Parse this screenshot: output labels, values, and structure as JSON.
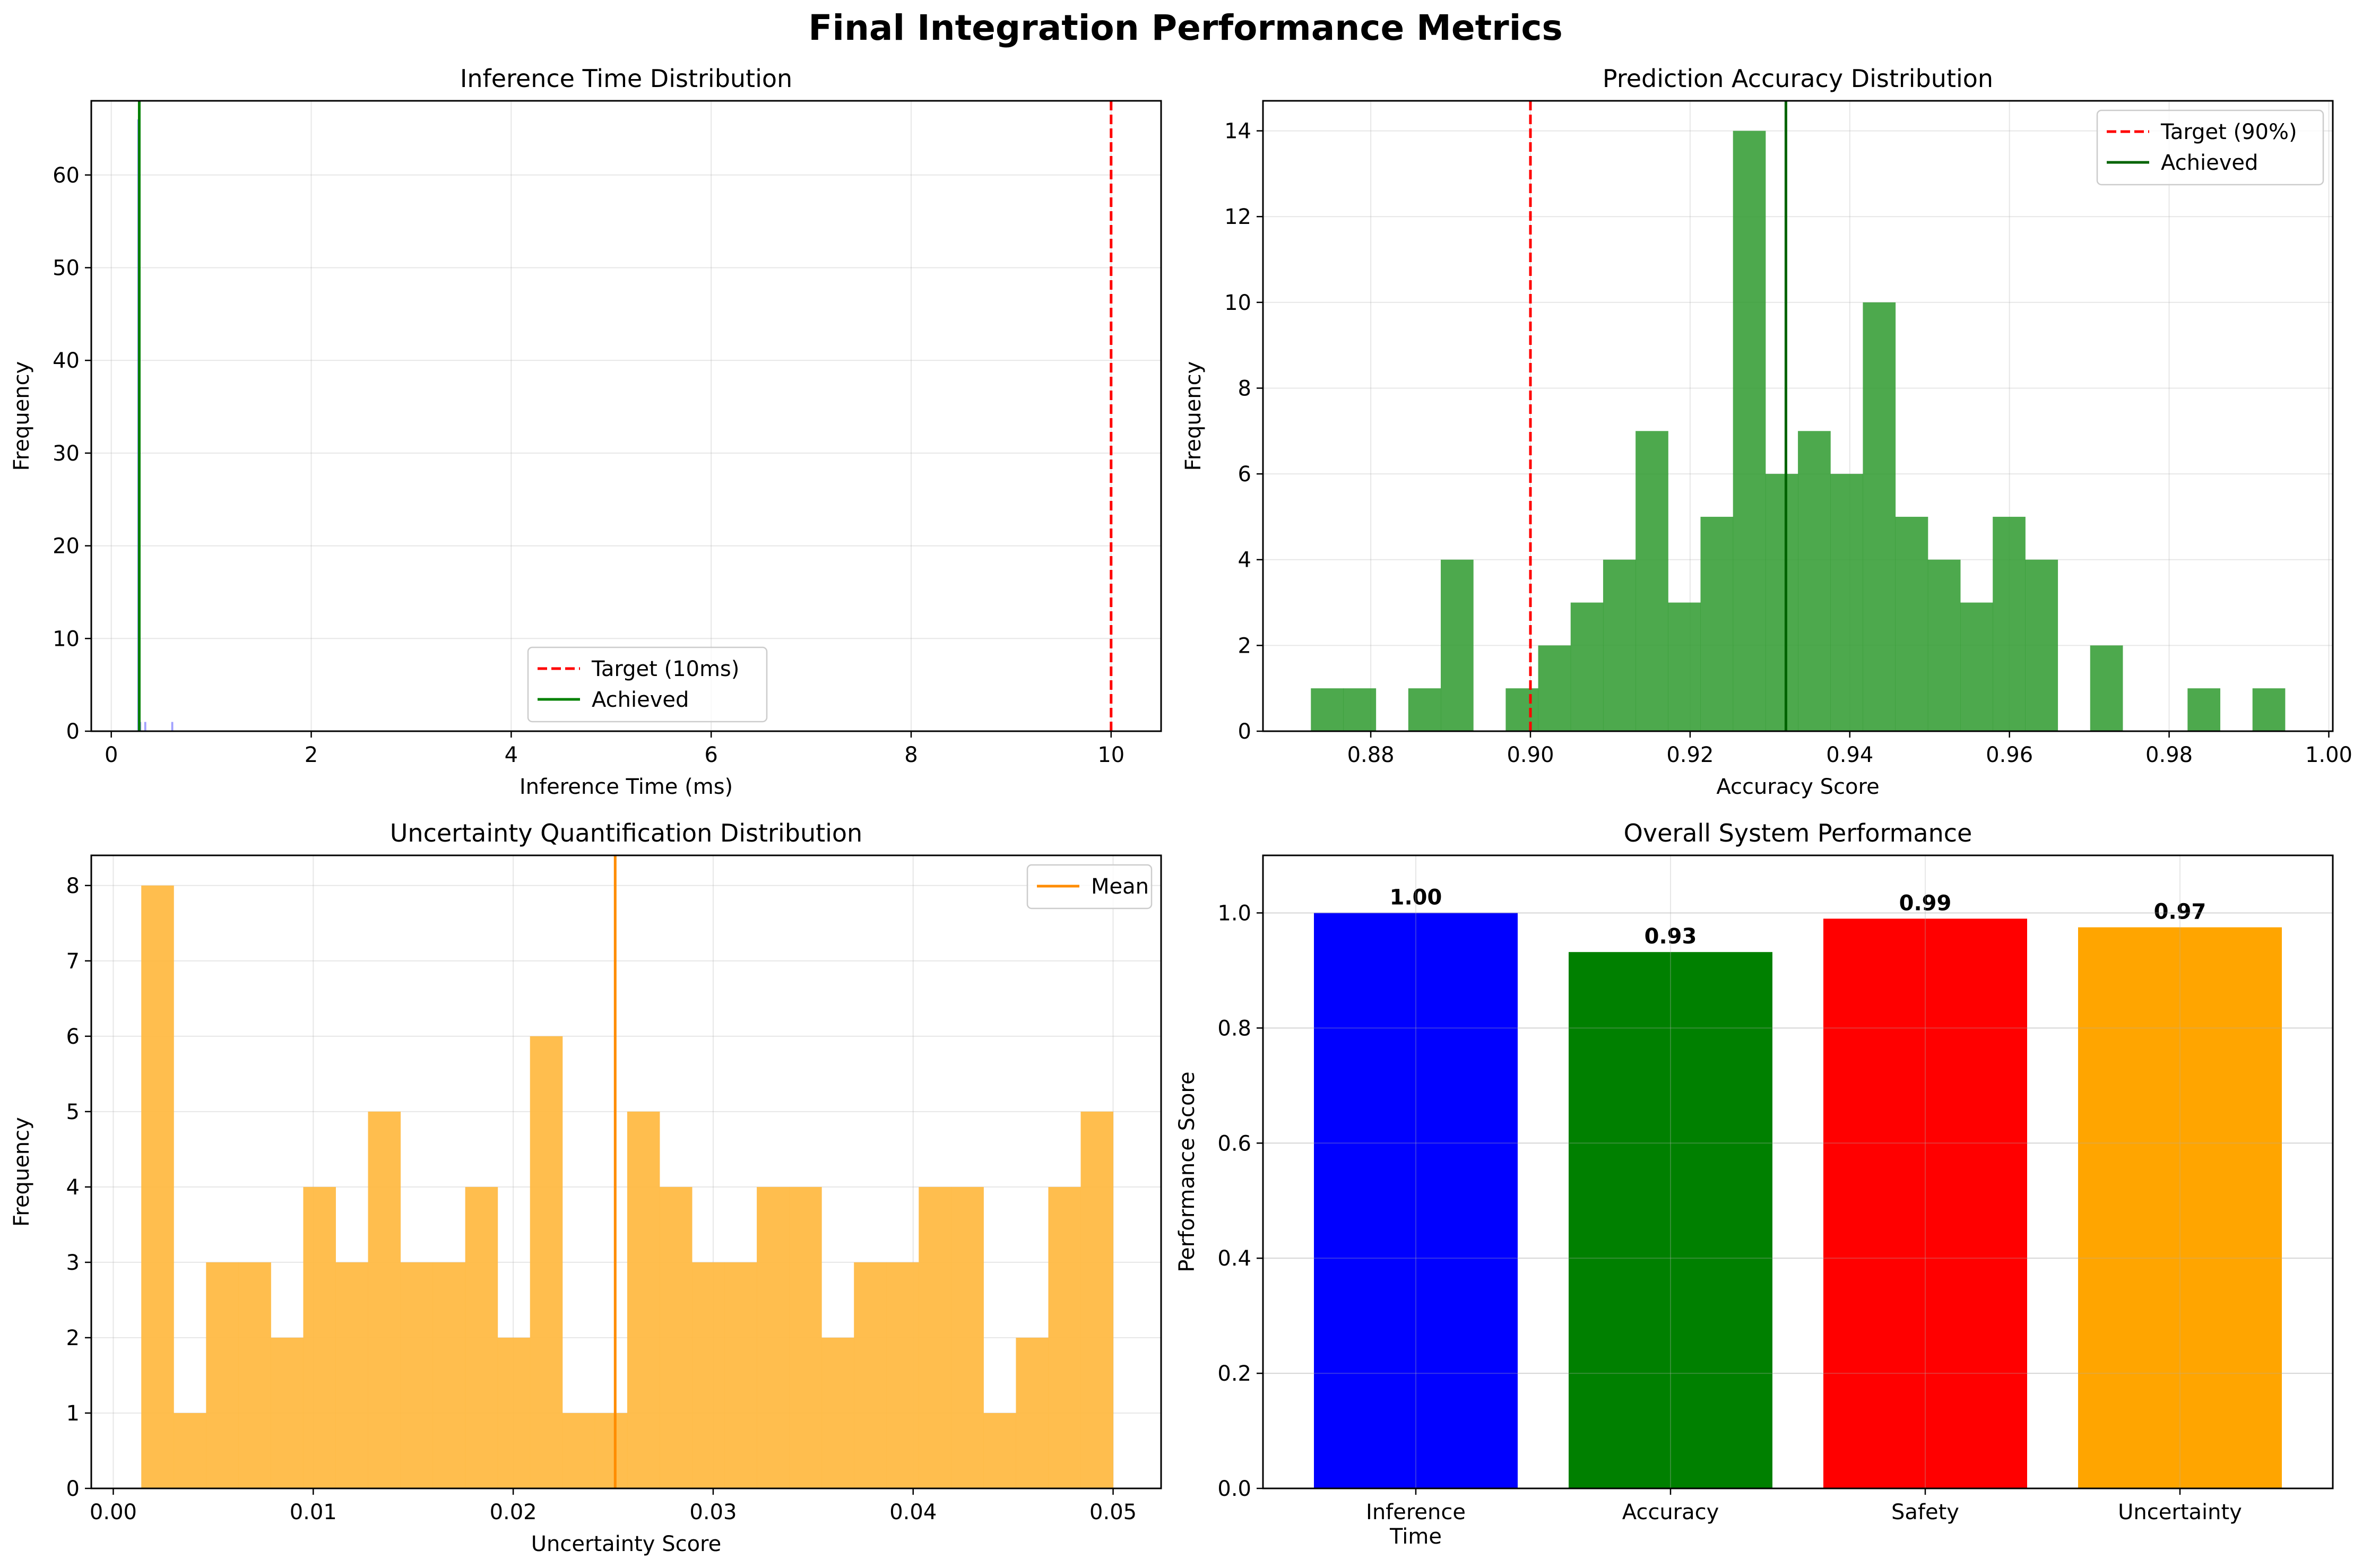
{
  "figure": {
    "title": "Final Integration Performance Metrics"
  },
  "colors": {
    "target_line": "#ff0000",
    "achieved_inference": "#008000",
    "achieved_accuracy": "#006400",
    "accuracy_hist": "#2e9a2e",
    "uncertainty_hist": "#ffbb44",
    "mean_line": "#ff8c00",
    "inference_hist": "#7777ff"
  },
  "chart_data": [
    {
      "id": "inference",
      "type": "histogram",
      "title": "Inference Time Distribution",
      "xlabel": "Inference Time (ms)",
      "ylabel": "Frequency",
      "xlim": [
        -0.2,
        10.5
      ],
      "ylim": [
        0,
        68
      ],
      "xticks": [
        0,
        2,
        4,
        6,
        8,
        10
      ],
      "yticks": [
        0,
        10,
        20,
        30,
        40,
        50,
        60
      ],
      "bins": [
        {
          "x0": 0.26,
          "x1": 0.28,
          "count": 66
        },
        {
          "x0": 0.28,
          "x1": 0.3,
          "count": 1
        },
        {
          "x0": 0.33,
          "x1": 0.35,
          "count": 1
        },
        {
          "x0": 0.6,
          "x1": 0.62,
          "count": 1
        }
      ],
      "lines": [
        {
          "x": 10,
          "style": "dashed",
          "color": "#ff0000",
          "label": "Target (10ms)"
        },
        {
          "x": 0.28,
          "style": "solid",
          "color": "#008000",
          "label": "Achieved"
        }
      ],
      "legend": "lower-center",
      "grid": true
    },
    {
      "id": "accuracy",
      "type": "histogram",
      "title": "Prediction Accuracy Distribution",
      "xlabel": "Accuracy Score",
      "ylabel": "Frequency",
      "xlim": [
        0.8665,
        1.0005
      ],
      "ylim": [
        0,
        14.7
      ],
      "xticks": [
        0.88,
        0.9,
        0.92,
        0.94,
        0.96,
        0.98,
        1.0
      ],
      "yticks": [
        0,
        2,
        4,
        6,
        8,
        10,
        12,
        14
      ],
      "bin_start": 0.8725,
      "bin_width": 0.004067,
      "counts": [
        1,
        1,
        0,
        1,
        4,
        0,
        1,
        2,
        3,
        4,
        7,
        3,
        5,
        14,
        6,
        7,
        6,
        10,
        5,
        4,
        3,
        5,
        4,
        0,
        2,
        0,
        0,
        1,
        0,
        1
      ],
      "lines": [
        {
          "x": 0.9,
          "style": "dashed",
          "color": "#ff0000",
          "label": "Target (90%)"
        },
        {
          "x": 0.932,
          "style": "solid",
          "color": "#006400",
          "label": "Achieved"
        }
      ],
      "legend": "upper-right",
      "grid": true
    },
    {
      "id": "uncertainty",
      "type": "histogram",
      "title": "Uncertainty Quantification Distribution",
      "xlabel": "Uncertainty Score",
      "ylabel": "Frequency",
      "xlim": [
        -0.0011,
        0.0524
      ],
      "ylim": [
        0,
        8.4
      ],
      "xticks": [
        0.0,
        0.01,
        0.02,
        0.03,
        0.04,
        0.05
      ],
      "yticks": [
        0,
        1,
        2,
        3,
        4,
        5,
        6,
        7,
        8
      ],
      "bin_start": 0.0014,
      "bin_width": 0.00162,
      "counts": [
        8,
        1,
        3,
        3,
        2,
        4,
        3,
        5,
        3,
        3,
        4,
        2,
        6,
        1,
        1,
        5,
        4,
        3,
        3,
        4,
        4,
        2,
        3,
        3,
        4,
        4,
        1,
        2,
        4,
        5
      ],
      "lines": [
        {
          "x": 0.0251,
          "style": "solid",
          "color": "#ff8c00",
          "label": "Mean"
        }
      ],
      "legend": "upper-right",
      "grid": true
    },
    {
      "id": "overall",
      "type": "bar",
      "title": "Overall System Performance",
      "xlabel": "",
      "ylabel": "Performance Score",
      "categories": [
        "Inference\nTime",
        "Accuracy",
        "Safety",
        "Uncertainty"
      ],
      "values": [
        1.0,
        0.932,
        0.99,
        0.975
      ],
      "value_labels": [
        "1.00",
        "0.93",
        "0.99",
        "0.97"
      ],
      "bar_colors": [
        "#0000ff",
        "#008000",
        "#ff0000",
        "#ffa500"
      ],
      "ylim": [
        0,
        1.1
      ],
      "yticks": [
        0.0,
        0.2,
        0.4,
        0.6,
        0.8,
        1.0
      ],
      "grid": true
    }
  ]
}
